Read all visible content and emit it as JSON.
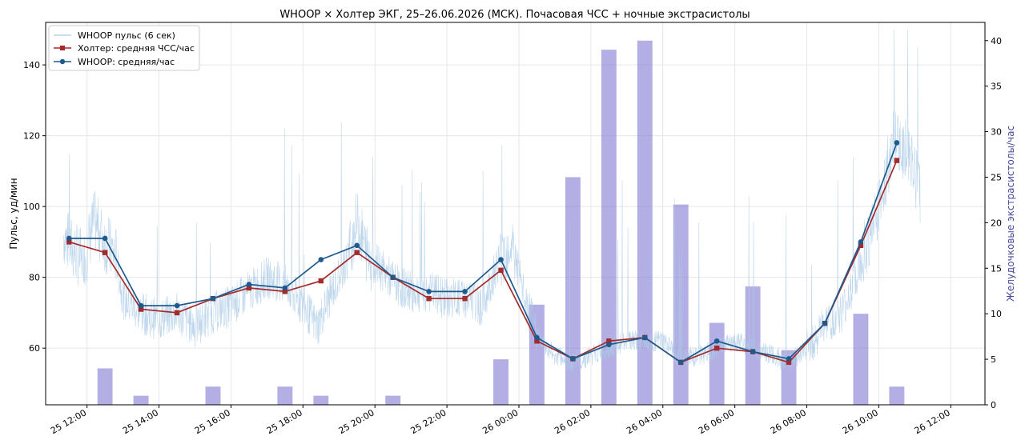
{
  "chart_data": {
    "type": "line",
    "title": "WHOOP × Холтер ЭКГ, 25–26.06.2026 (МСК). Почасовая ЧСС + ночные экстрасистолы",
    "ylabel": "Пульс, уд/мин",
    "y2label": "Желудочковые экстрасистолы/час",
    "ylim": [
      44,
      152
    ],
    "y2lim": [
      0,
      42
    ],
    "yticks": [
      60,
      80,
      100,
      120,
      140
    ],
    "y2ticks": [
      0,
      5,
      10,
      15,
      20,
      25,
      30,
      35,
      40
    ],
    "xlim_hours": [
      10.85,
      36.95
    ],
    "xticks": [
      {
        "h": 12,
        "label": "25 12:00"
      },
      {
        "h": 14,
        "label": "25 14:00"
      },
      {
        "h": 16,
        "label": "25 16:00"
      },
      {
        "h": 18,
        "label": "25 18:00"
      },
      {
        "h": 20,
        "label": "25 20:00"
      },
      {
        "h": 22,
        "label": "25 22:00"
      },
      {
        "h": 24,
        "label": "26 00:00"
      },
      {
        "h": 26,
        "label": "26 02:00"
      },
      {
        "h": 28,
        "label": "26 04:00"
      },
      {
        "h": 30,
        "label": "26 06:00"
      },
      {
        "h": 32,
        "label": "26 08:00"
      },
      {
        "h": 34,
        "label": "26 10:00"
      },
      {
        "h": 36,
        "label": "26 12:00"
      }
    ],
    "grid": true,
    "legend_position": "top-left",
    "colors": {
      "raw": "#a9c9e6",
      "holter": "#a52a2a",
      "whoop": "#1f5a8c",
      "bars": "#8b83d6"
    },
    "series": [
      {
        "name": "WHOOP пульс (6 сек)",
        "kind": "raw",
        "segments": [
          {
            "h": 11.35,
            "y": 92
          },
          {
            "h": 11.6,
            "y": 88
          },
          {
            "h": 11.9,
            "y": 84
          },
          {
            "h": 12.2,
            "y": 96
          },
          {
            "h": 12.5,
            "y": 90
          },
          {
            "h": 12.8,
            "y": 86
          },
          {
            "h": 13.0,
            "y": 74
          },
          {
            "h": 13.5,
            "y": 70
          },
          {
            "h": 14.0,
            "y": 68
          },
          {
            "h": 14.5,
            "y": 70
          },
          {
            "h": 15.0,
            "y": 66
          },
          {
            "h": 15.5,
            "y": 70
          },
          {
            "h": 16.0,
            "y": 72
          },
          {
            "h": 16.5,
            "y": 76
          },
          {
            "h": 17.0,
            "y": 80
          },
          {
            "h": 17.5,
            "y": 78
          },
          {
            "h": 18.0,
            "y": 72
          },
          {
            "h": 18.4,
            "y": 66
          },
          {
            "h": 18.8,
            "y": 76
          },
          {
            "h": 19.2,
            "y": 84
          },
          {
            "h": 19.5,
            "y": 96
          },
          {
            "h": 19.8,
            "y": 86
          },
          {
            "h": 20.2,
            "y": 82
          },
          {
            "h": 20.6,
            "y": 78
          },
          {
            "h": 21.0,
            "y": 76
          },
          {
            "h": 21.5,
            "y": 76
          },
          {
            "h": 22.0,
            "y": 74
          },
          {
            "h": 22.5,
            "y": 74
          },
          {
            "h": 23.0,
            "y": 72
          },
          {
            "h": 23.4,
            "y": 84
          },
          {
            "h": 23.8,
            "y": 90
          },
          {
            "h": 24.2,
            "y": 72
          },
          {
            "h": 24.6,
            "y": 62
          },
          {
            "h": 25.0,
            "y": 58
          },
          {
            "h": 25.5,
            "y": 56
          },
          {
            "h": 26.0,
            "y": 58
          },
          {
            "h": 26.5,
            "y": 60
          },
          {
            "h": 27.0,
            "y": 62
          },
          {
            "h": 27.5,
            "y": 62
          },
          {
            "h": 28.0,
            "y": 62
          },
          {
            "h": 28.5,
            "y": 57
          },
          {
            "h": 29.0,
            "y": 58
          },
          {
            "h": 29.5,
            "y": 60
          },
          {
            "h": 30.0,
            "y": 62
          },
          {
            "h": 30.5,
            "y": 60
          },
          {
            "h": 31.0,
            "y": 58
          },
          {
            "h": 31.5,
            "y": 56
          },
          {
            "h": 32.0,
            "y": 60
          },
          {
            "h": 32.5,
            "y": 66
          },
          {
            "h": 33.0,
            "y": 70
          },
          {
            "h": 33.5,
            "y": 84
          },
          {
            "h": 34.0,
            "y": 100
          },
          {
            "h": 34.4,
            "y": 118
          },
          {
            "h": 34.8,
            "y": 116
          },
          {
            "h": 35.15,
            "y": 104
          }
        ]
      },
      {
        "name": "Холтер: средняя ЧСС/час",
        "kind": "holter",
        "points": [
          {
            "h": 11.5,
            "y": 90
          },
          {
            "h": 12.5,
            "y": 87
          },
          {
            "h": 13.5,
            "y": 71
          },
          {
            "h": 14.5,
            "y": 70
          },
          {
            "h": 15.5,
            "y": 74
          },
          {
            "h": 16.5,
            "y": 77
          },
          {
            "h": 17.5,
            "y": 76
          },
          {
            "h": 18.5,
            "y": 79
          },
          {
            "h": 19.5,
            "y": 87
          },
          {
            "h": 20.5,
            "y": 80
          },
          {
            "h": 21.5,
            "y": 74
          },
          {
            "h": 22.5,
            "y": 74
          },
          {
            "h": 23.5,
            "y": 82
          },
          {
            "h": 24.5,
            "y": 62
          },
          {
            "h": 25.5,
            "y": 57
          },
          {
            "h": 26.5,
            "y": 62
          },
          {
            "h": 27.5,
            "y": 63
          },
          {
            "h": 28.5,
            "y": 56
          },
          {
            "h": 29.5,
            "y": 60
          },
          {
            "h": 30.5,
            "y": 59
          },
          {
            "h": 31.5,
            "y": 56
          },
          {
            "h": 32.5,
            "y": 67
          },
          {
            "h": 33.5,
            "y": 89
          },
          {
            "h": 34.5,
            "y": 113
          }
        ]
      },
      {
        "name": "WHOOP: средняя/час",
        "kind": "whoop",
        "points": [
          {
            "h": 11.5,
            "y": 91
          },
          {
            "h": 12.5,
            "y": 91
          },
          {
            "h": 13.5,
            "y": 72
          },
          {
            "h": 14.5,
            "y": 72
          },
          {
            "h": 15.5,
            "y": 74
          },
          {
            "h": 16.5,
            "y": 78
          },
          {
            "h": 17.5,
            "y": 77
          },
          {
            "h": 18.5,
            "y": 85
          },
          {
            "h": 19.5,
            "y": 89
          },
          {
            "h": 20.5,
            "y": 80
          },
          {
            "h": 21.5,
            "y": 76
          },
          {
            "h": 22.5,
            "y": 76
          },
          {
            "h": 23.5,
            "y": 85
          },
          {
            "h": 24.5,
            "y": 63
          },
          {
            "h": 25.5,
            "y": 57
          },
          {
            "h": 26.5,
            "y": 61
          },
          {
            "h": 27.5,
            "y": 63
          },
          {
            "h": 28.5,
            "y": 56
          },
          {
            "h": 29.5,
            "y": 62
          },
          {
            "h": 30.5,
            "y": 59
          },
          {
            "h": 31.5,
            "y": 57
          },
          {
            "h": 32.5,
            "y": 67
          },
          {
            "h": 33.5,
            "y": 90
          },
          {
            "h": 34.5,
            "y": 118
          }
        ]
      }
    ],
    "bars": {
      "axis": "right",
      "width_hours": 0.42,
      "points": [
        {
          "h": 12.5,
          "v": 4
        },
        {
          "h": 13.5,
          "v": 1
        },
        {
          "h": 15.5,
          "v": 2
        },
        {
          "h": 17.5,
          "v": 2
        },
        {
          "h": 18.5,
          "v": 1
        },
        {
          "h": 20.5,
          "v": 1
        },
        {
          "h": 23.5,
          "v": 5
        },
        {
          "h": 24.5,
          "v": 11
        },
        {
          "h": 25.5,
          "v": 25
        },
        {
          "h": 26.5,
          "v": 39
        },
        {
          "h": 27.5,
          "v": 40
        },
        {
          "h": 28.5,
          "v": 22
        },
        {
          "h": 29.5,
          "v": 9
        },
        {
          "h": 30.5,
          "v": 13
        },
        {
          "h": 31.5,
          "v": 6
        },
        {
          "h": 33.5,
          "v": 10
        },
        {
          "h": 34.5,
          "v": 2
        }
      ]
    }
  }
}
